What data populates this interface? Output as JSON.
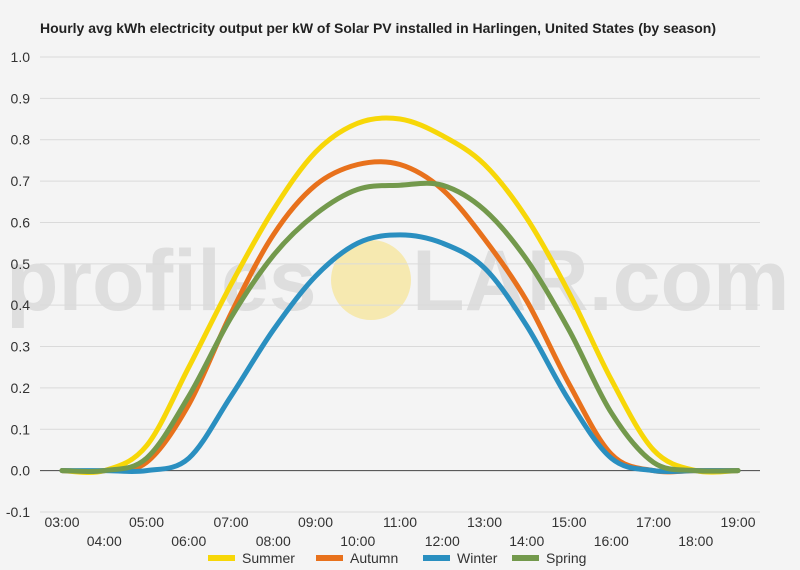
{
  "watermark": {
    "left_text": "profiles",
    "right_text": "LAR.com",
    "sun_color": "#f6e9b0"
  },
  "chart_data": {
    "type": "line",
    "title": "Hourly avg kWh electricity output per kW of Solar PV installed in Harlingen, United States (by season)",
    "xlabel": "",
    "ylabel": "",
    "ylim": [
      -0.1,
      1.0
    ],
    "yticks": [
      "-0.1",
      "0.0",
      "0.1",
      "0.2",
      "0.3",
      "0.4",
      "0.5",
      "0.6",
      "0.7",
      "0.8",
      "0.9",
      "1.0"
    ],
    "xticks": [
      "03:00",
      "04:00",
      "05:00",
      "06:00",
      "07:00",
      "08:00",
      "09:00",
      "10:00",
      "11:00",
      "12:00",
      "13:00",
      "14:00",
      "15:00",
      "16:00",
      "17:00",
      "18:00",
      "19:00"
    ],
    "x": [
      3,
      4,
      5,
      6,
      7,
      8,
      9,
      10,
      11,
      12,
      13,
      14,
      15,
      16,
      17,
      18,
      19
    ],
    "grid": true,
    "legend_position": "bottom",
    "series": [
      {
        "name": "Summer",
        "color": "#f7d708",
        "values": [
          0.0,
          0.0,
          0.06,
          0.25,
          0.45,
          0.63,
          0.77,
          0.84,
          0.85,
          0.81,
          0.74,
          0.61,
          0.43,
          0.22,
          0.05,
          0.0,
          0.0
        ]
      },
      {
        "name": "Autumn",
        "color": "#e8711c",
        "values": [
          0.0,
          0.0,
          0.02,
          0.16,
          0.38,
          0.57,
          0.69,
          0.74,
          0.74,
          0.68,
          0.56,
          0.41,
          0.21,
          0.04,
          0.0,
          0.0,
          0.0
        ]
      },
      {
        "name": "Winter",
        "color": "#2a8fc0",
        "values": [
          0.0,
          0.0,
          0.0,
          0.03,
          0.18,
          0.34,
          0.47,
          0.55,
          0.57,
          0.55,
          0.49,
          0.35,
          0.17,
          0.03,
          0.0,
          0.0,
          0.0
        ]
      },
      {
        "name": "Spring",
        "color": "#73994c",
        "values": [
          0.0,
          0.0,
          0.03,
          0.18,
          0.37,
          0.52,
          0.62,
          0.68,
          0.69,
          0.69,
          0.63,
          0.51,
          0.34,
          0.14,
          0.02,
          0.0,
          0.0
        ]
      }
    ]
  }
}
